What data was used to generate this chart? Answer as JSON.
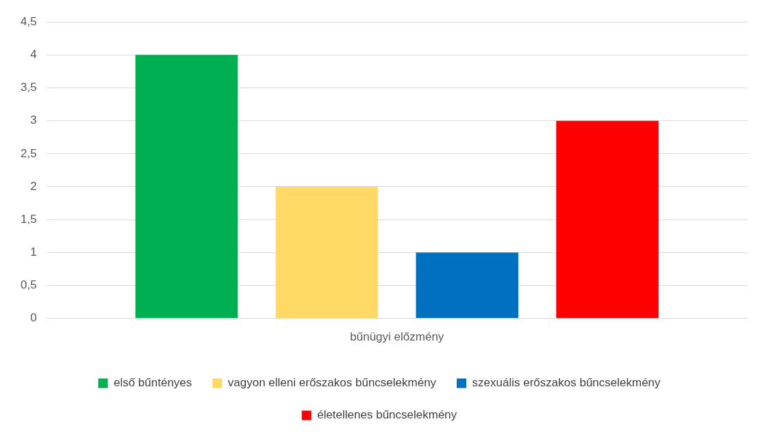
{
  "chart_data": {
    "type": "bar",
    "categories": [
      "bűnügyi előzmény"
    ],
    "series": [
      {
        "name": "első bűntényes",
        "color": "#00b050",
        "values": [
          4
        ]
      },
      {
        "name": "vagyon elleni erőszakos bűncselekmény",
        "color": "#ffd966",
        "values": [
          2
        ]
      },
      {
        "name": "szexuális erőszakos bűncselekmény",
        "color": "#0070c0",
        "values": [
          1
        ]
      },
      {
        "name": "életellenes bűncselekmény",
        "color": "#ff0000",
        "values": [
          3
        ]
      }
    ],
    "ylim": [
      0,
      4.5
    ],
    "yticks": [
      0,
      {
        "value": 0.5,
        "label": "0,5"
      },
      1,
      {
        "value": 1.5,
        "label": "1,5"
      },
      2,
      {
        "value": 2.5,
        "label": "2,5"
      },
      3,
      {
        "value": 3.5,
        "label": "3,5"
      },
      4,
      {
        "value": 4.5,
        "label": "4,5"
      }
    ],
    "grid": "y",
    "legend": "bottom"
  }
}
